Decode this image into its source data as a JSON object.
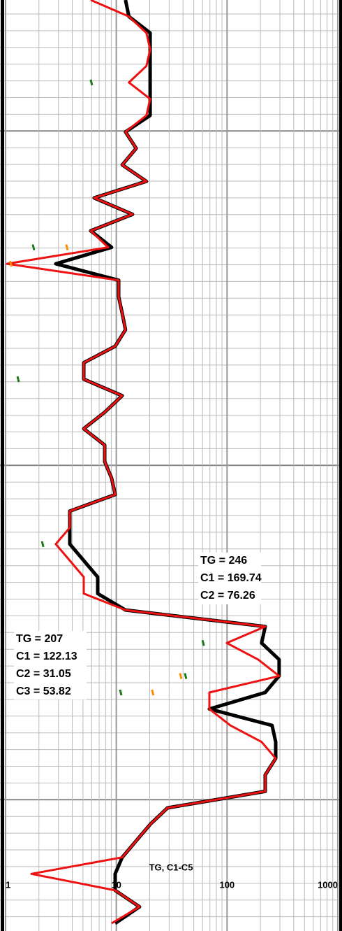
{
  "chart_data": {
    "type": "line",
    "xlog": true,
    "grid": true,
    "xlabel": "TG, C1-C5",
    "xlim": [
      1,
      1000
    ],
    "xticks": [
      1,
      10,
      100,
      1000
    ],
    "categories": [
      null,
      null,
      null,
      null,
      null,
      null,
      null,
      null,
      null,
      null,
      null,
      null,
      null,
      null,
      null,
      null,
      null,
      null,
      null,
      null,
      null,
      null,
      null,
      null,
      null,
      null,
      null,
      null,
      null,
      null,
      null,
      null,
      null,
      null,
      null,
      null,
      null,
      null,
      null,
      null,
      null,
      null,
      null,
      null,
      null,
      null,
      null,
      null,
      null,
      null,
      null,
      null,
      null,
      null,
      null,
      null,
      null
    ],
    "series": [
      {
        "name": "TG",
        "color": "#000000",
        "values": [
          12.1,
          13.0,
          20.2,
          20.2,
          20.2,
          20.2,
          20.2,
          20.2,
          12.1,
          15.1,
          11.3,
          18.7,
          6.31,
          14.0,
          5.87,
          9.07,
          2.84,
          10.5,
          10.5,
          11.3,
          12.1,
          9.76,
          5.08,
          5.08,
          11.3,
          7.85,
          5.08,
          7.85,
          7.85,
          9.07,
          9.76,
          3.8,
          3.8,
          3.8,
          5.08,
          6.79,
          6.79,
          12.1,
          221,
          205,
          295,
          295,
          221,
          69.2,
          255,
          275,
          275,
          221,
          221,
          29.0,
          20.2,
          15.1,
          11.3,
          9.76,
          9.76,
          16.2,
          9.76
        ]
      },
      {
        "name": "C1",
        "color": "#ee1111",
        "values": [
          5.87,
          13.0,
          18.7,
          20.2,
          18.7,
          13.0,
          20.2,
          18.7,
          12.1,
          15.1,
          11.3,
          18.7,
          6.31,
          14.0,
          5.87,
          8.44,
          1.03,
          10.5,
          10.5,
          11.3,
          12.1,
          9.76,
          5.08,
          5.08,
          11.3,
          7.85,
          5.08,
          7.85,
          7.85,
          9.07,
          9.76,
          3.8,
          3.8,
          2.84,
          3.8,
          5.08,
          5.08,
          12.1,
          221,
          99.4,
          191,
          295,
          69.2,
          69.2,
          107,
          205,
          275,
          221,
          221,
          29.0,
          20.2,
          15.1,
          11.3,
          1.71,
          9.76,
          16.2,
          9.07
        ]
      },
      {
        "name": "C2",
        "color": "#ff8c00",
        "values": [
          null,
          null,
          null,
          null,
          null,
          null,
          null,
          null,
          null,
          null,
          null,
          null,
          null,
          null,
          null,
          3.53,
          1.1,
          null,
          null,
          null,
          null,
          null,
          null,
          null,
          null,
          null,
          null,
          null,
          null,
          null,
          null,
          null,
          null,
          null,
          null,
          null,
          null,
          null,
          null,
          null,
          null,
          37.6,
          21.0,
          null,
          null,
          null,
          null,
          null,
          null,
          null,
          null,
          null,
          null,
          null,
          null,
          null,
          null
        ]
      },
      {
        "name": "C3",
        "color": "#1a7a1a",
        "values": [
          null,
          null,
          null,
          null,
          null,
          5.87,
          null,
          null,
          null,
          null,
          null,
          null,
          null,
          null,
          null,
          1.76,
          null,
          null,
          null,
          null,
          null,
          null,
          null,
          1.28,
          null,
          null,
          null,
          null,
          null,
          null,
          null,
          null,
          null,
          2.13,
          null,
          null,
          null,
          null,
          null,
          60,
          null,
          41.6,
          10.8,
          null,
          null,
          null,
          null,
          null,
          null,
          null,
          null,
          null,
          null,
          null,
          null,
          null,
          null
        ]
      }
    ],
    "annotations": [
      [
        "TG = 246",
        "C1 = 169.74",
        "C2 = 76.26"
      ],
      [
        "TG = 207",
        "C1 = 122.13",
        "C2 = 31.05",
        "C3 = 53.82"
      ]
    ]
  }
}
